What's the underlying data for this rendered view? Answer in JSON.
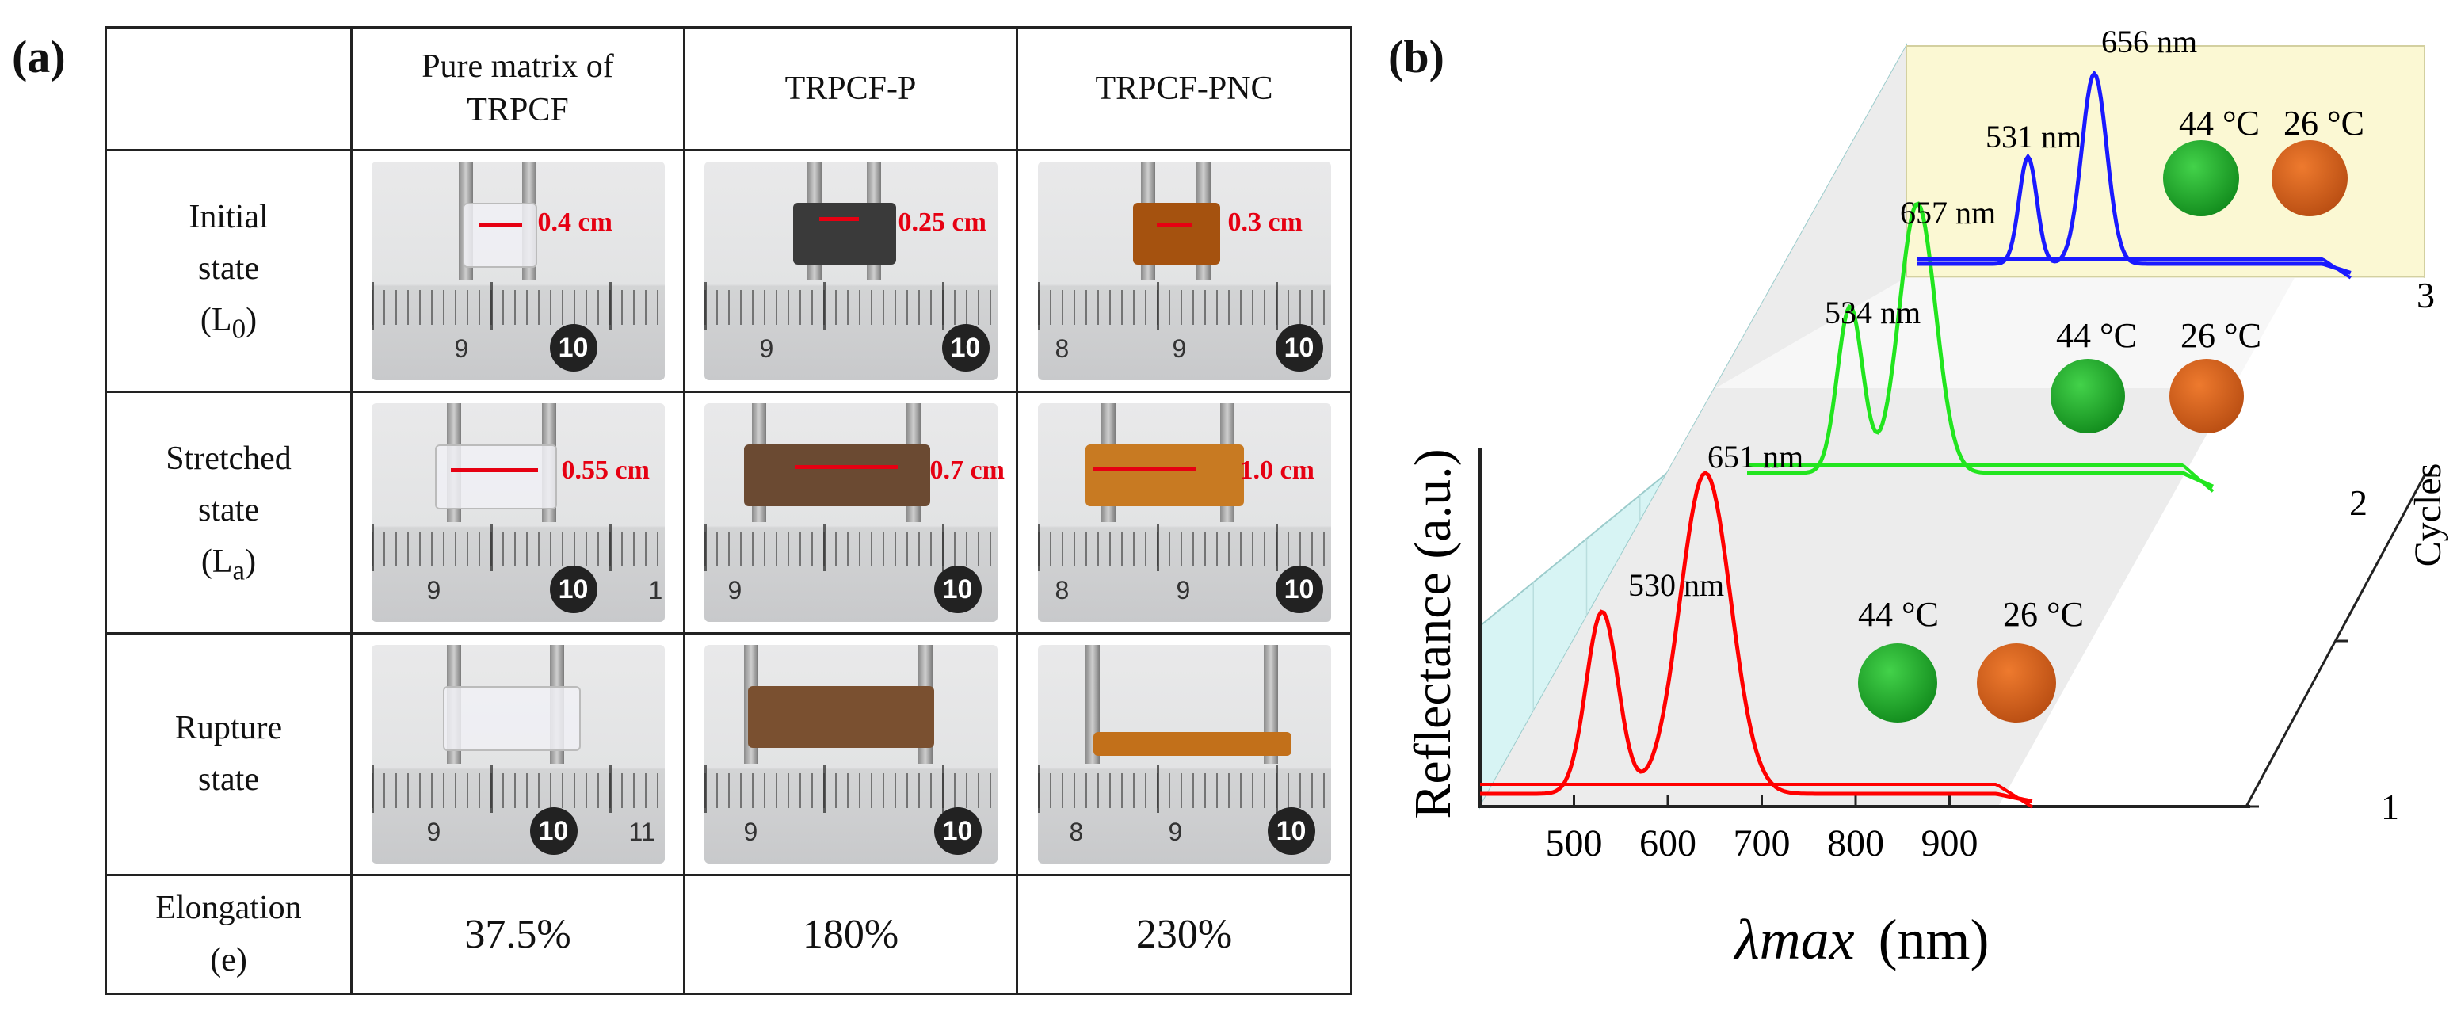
{
  "panel_a": {
    "label": "(a)",
    "columns": [
      "Pure matrix of",
      "TRPCF",
      "TRPCF-P",
      "TRPCF-PNC"
    ],
    "rows": [
      {
        "label": [
          "Initial",
          "state",
          "(L",
          "0",
          ")"
        ],
        "measurements": [
          "0.4 cm",
          "0.25 cm",
          "0.3 cm"
        ]
      },
      {
        "label": [
          "Stretched",
          "state",
          "(L",
          "a",
          ")"
        ],
        "measurements": [
          "0.55 cm",
          "0.7 cm",
          "1.0 cm"
        ]
      },
      {
        "label": [
          "Rupture",
          "state"
        ],
        "measurements": [
          "",
          "",
          ""
        ]
      }
    ],
    "elongation": {
      "label": [
        "Elongation",
        "(e)"
      ],
      "values": [
        "37.5%",
        "180%",
        "230%"
      ]
    },
    "ruler_numbers": {
      "n8": "8",
      "n9": "9",
      "n10": "10",
      "n11": "11",
      "n1": "1"
    }
  },
  "panel_b": {
    "label": "(b)",
    "chart_data": {
      "type": "line",
      "title": "",
      "xlabel_symbol": "λmax",
      "xlabel_unit": "(nm)",
      "ylabel": "Reflectance (a.u.)",
      "zlabel": "Cycles",
      "xlim": [
        400,
        1000
      ],
      "xticks": [
        "500",
        "600",
        "700",
        "800",
        "900"
      ],
      "xtick_values": [
        500,
        600,
        700,
        800,
        900
      ],
      "cycles": [
        "1",
        "2",
        "3"
      ],
      "series": [
        {
          "name": "Cycle 1",
          "cycle": 1,
          "color": "#ff0000",
          "peak_labels": [
            "530 nm",
            "651 nm"
          ],
          "temps": [
            "44 °C",
            "26 °C"
          ]
        },
        {
          "name": "Cycle 2",
          "cycle": 2,
          "color": "#22e51f",
          "peak_labels": [
            "534 nm",
            "657 nm"
          ],
          "temps": [
            "44 °C",
            "26 °C"
          ]
        },
        {
          "name": "Cycle 3",
          "cycle": 3,
          "color": "#1a1aff",
          "peak_labels": [
            "531 nm",
            "656 nm"
          ],
          "temps": [
            "44 °C",
            "26 °C"
          ]
        }
      ],
      "sphere_colors": {
        "hot": "#1fa22b",
        "cold": "#d35f1c"
      }
    }
  }
}
